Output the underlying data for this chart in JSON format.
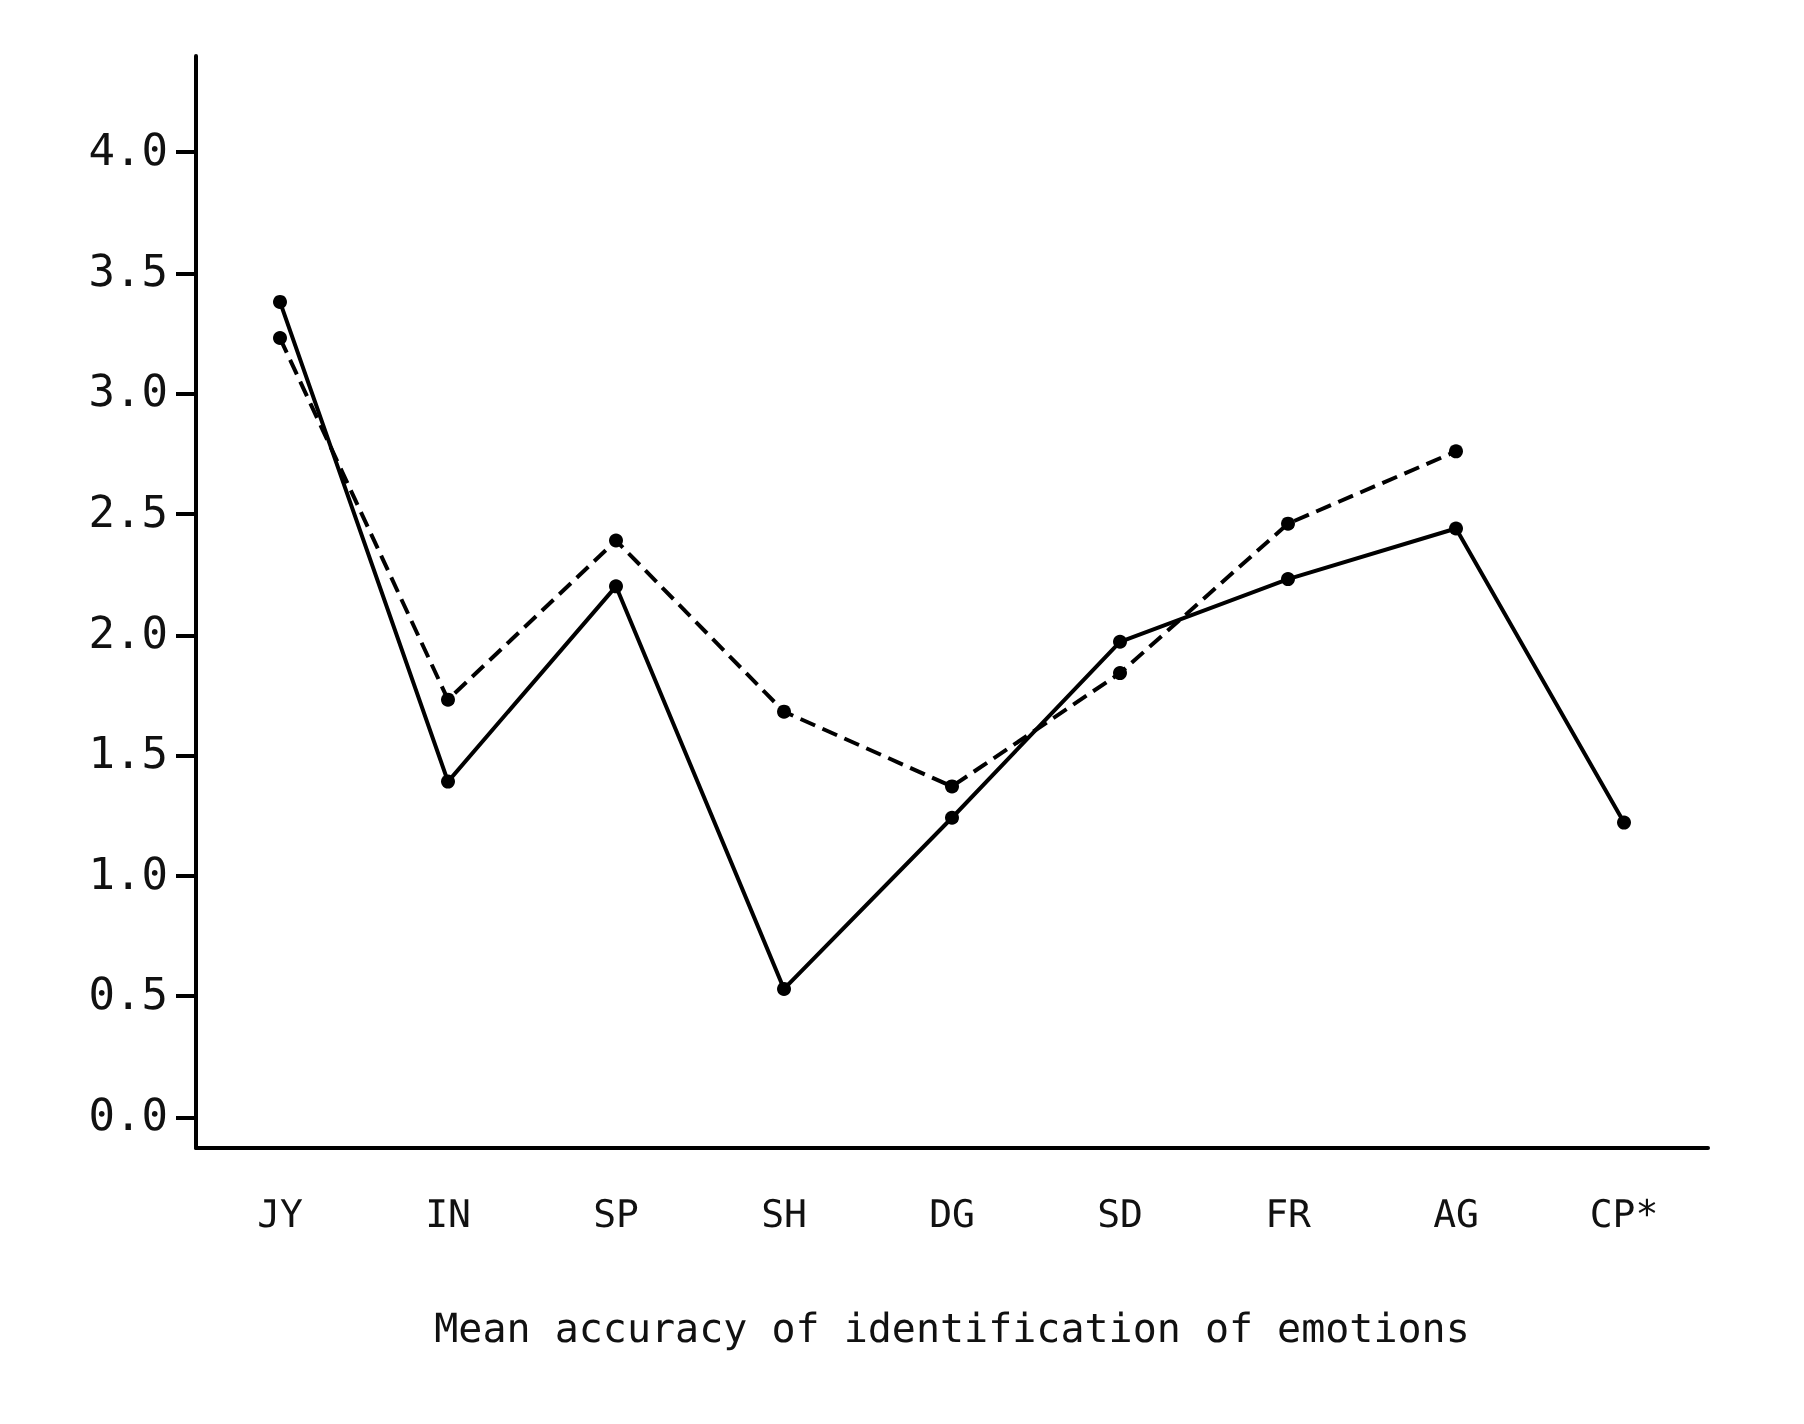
{
  "chart_data": {
    "type": "line",
    "xlabel": "Mean accuracy of identification of emotions",
    "categories": [
      "JY",
      "IN",
      "SP",
      "SH",
      "DG",
      "SD",
      "FR",
      "AG",
      "CP*"
    ],
    "series": [
      {
        "color": "#000000",
        "line_style": "solid",
        "values": [
          3.38,
          1.39,
          2.2,
          0.53,
          1.24,
          1.97,
          2.23,
          2.44,
          1.22
        ]
      },
      {
        "color": "#000000",
        "line_style": "dashed",
        "values": [
          3.23,
          1.73,
          2.39,
          1.68,
          1.37,
          1.84,
          2.46,
          2.76,
          null
        ]
      }
    ],
    "ylim": [
      -0.13,
      4.4
    ],
    "yticks": [
      {
        "value": 0,
        "label": "0.0"
      },
      0.5,
      {
        "value": 1,
        "label": "1.0"
      },
      1.5,
      {
        "value": 2,
        "label": "2.0"
      },
      2.5,
      {
        "value": 3,
        "label": "3.0"
      },
      3.5,
      {
        "value": 4,
        "label": "4.0"
      }
    ],
    "marker": "circle",
    "grid": false
  }
}
